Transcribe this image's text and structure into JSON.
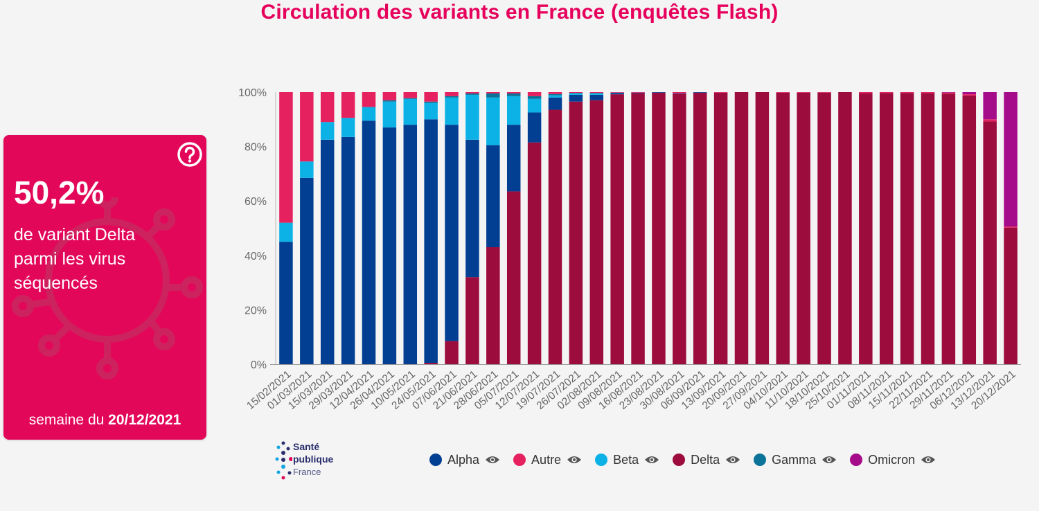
{
  "title": "Circulation des variants en France (enquêtes Flash)",
  "card": {
    "value": "50,2%",
    "line1": "de variant Delta",
    "line2": "parmi les virus",
    "line3": "séquencés",
    "week_prefix": "semaine du ",
    "week_date": "20/12/2021",
    "background": "#e3075a",
    "help_icon": "question-circle-icon"
  },
  "logo": {
    "line1": "Santé",
    "line2": "publique",
    "line3": "France"
  },
  "colors": {
    "Alpha": "#023f93",
    "Autre": "#e6215f",
    "Beta": "#0cb2e6",
    "Delta": "#9c0c3c",
    "Gamma": "#0c7399",
    "Omicron": "#a50c8a"
  },
  "chart_data": {
    "type": "bar",
    "stacked": true,
    "ylim": [
      0,
      100
    ],
    "yticks": [
      "0%",
      "20%",
      "40%",
      "60%",
      "80%",
      "100%"
    ],
    "legend_position": "bottom",
    "categories": [
      "15/02/2021",
      "01/03/2021",
      "15/03/2021",
      "29/03/2021",
      "12/04/2021",
      "26/04/2021",
      "10/05/2021",
      "24/05/2021",
      "07/06/2021",
      "21/06/2021",
      "28/06/2021",
      "05/07/2021",
      "12/07/2021",
      "19/07/2021",
      "26/07/2021",
      "02/08/2021",
      "09/08/2021",
      "16/08/2021",
      "23/08/2021",
      "30/08/2021",
      "06/09/2021",
      "13/09/2021",
      "20/09/2021",
      "27/09/2021",
      "04/10/2021",
      "11/10/2021",
      "18/10/2021",
      "25/10/2021",
      "01/11/2021",
      "08/11/2021",
      "15/11/2021",
      "22/11/2021",
      "29/11/2021",
      "06/12/2021",
      "13/12/2021",
      "20/12/2021"
    ],
    "series": [
      {
        "name": "Delta",
        "values": [
          0,
          0,
          0,
          0,
          0,
          0,
          0,
          0.5,
          8.5,
          32,
          43,
          63.5,
          81.5,
          93.5,
          96.5,
          97,
          99.2,
          99.6,
          99.8,
          99.3,
          99.8,
          99.8,
          100,
          100,
          99.8,
          99.8,
          99.8,
          100,
          99.6,
          99.7,
          99.7,
          99.6,
          99.4,
          98.7,
          89.2,
          50.2
        ]
      },
      {
        "name": "Alpha",
        "values": [
          45,
          68.5,
          82.5,
          83.5,
          89.5,
          87,
          88,
          89.5,
          79.5,
          50.5,
          37.5,
          24.5,
          11,
          4.5,
          2.5,
          2,
          0.5,
          0.2,
          0.2,
          0.2,
          0.2,
          0,
          0,
          0,
          0,
          0,
          0,
          0,
          0,
          0,
          0,
          0,
          0,
          0,
          0,
          0
        ]
      },
      {
        "name": "Beta",
        "values": [
          7,
          6,
          6.5,
          7,
          5,
          9.5,
          9.5,
          6,
          10,
          16.5,
          17.5,
          10.5,
          5,
          0.8,
          0.5,
          0.5,
          0.1,
          0,
          0,
          0,
          0,
          0,
          0,
          0,
          0,
          0,
          0,
          0,
          0,
          0,
          0,
          0,
          0,
          0,
          0,
          0
        ]
      },
      {
        "name": "Gamma",
        "values": [
          0,
          0,
          0,
          0,
          0,
          0.5,
          0.3,
          0.5,
          0.5,
          0.5,
          1.5,
          1,
          1,
          0.5,
          0.2,
          0.2,
          0,
          0,
          0,
          0,
          0,
          0,
          0,
          0,
          0,
          0,
          0,
          0,
          0,
          0,
          0,
          0,
          0,
          0,
          0,
          0
        ]
      },
      {
        "name": "Autre",
        "values": [
          48,
          25.5,
          11,
          9.5,
          5.5,
          3,
          2.2,
          3.5,
          1.5,
          0.5,
          0.5,
          0.5,
          1.5,
          0.7,
          0.3,
          0.3,
          0.2,
          0.2,
          0,
          0.5,
          0,
          0.2,
          0,
          0,
          0.2,
          0.2,
          0.2,
          0,
          0.4,
          0.3,
          0.3,
          0.4,
          0.4,
          0.5,
          0.8,
          0.4
        ]
      },
      {
        "name": "Omicron",
        "values": [
          0,
          0,
          0,
          0,
          0,
          0,
          0,
          0,
          0,
          0,
          0,
          0,
          0,
          0,
          0,
          0,
          0,
          0,
          0,
          0,
          0,
          0,
          0,
          0,
          0,
          0,
          0,
          0,
          0,
          0,
          0,
          0,
          0.2,
          0.8,
          10,
          49.4
        ]
      }
    ],
    "legend": [
      "Alpha",
      "Autre",
      "Beta",
      "Delta",
      "Gamma",
      "Omicron"
    ]
  }
}
